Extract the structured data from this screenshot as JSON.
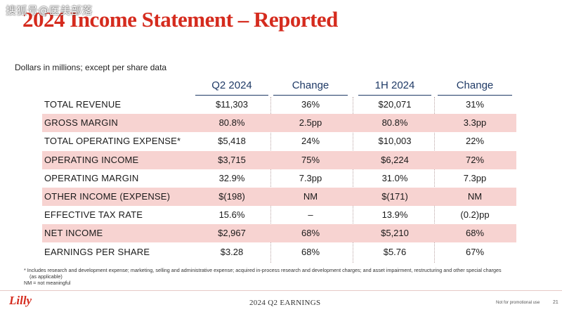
{
  "watermark": "搜狐号@医美部落",
  "title": "2024 Income Statement – Reported",
  "subtitle": "Dollars in millions; except per share data",
  "columns": [
    "Q2 2024",
    "Change",
    "1H 2024",
    "Change"
  ],
  "rows": [
    {
      "label": "TOTAL REVENUE",
      "q2": "$11,303",
      "q2_change": "36%",
      "h1": "$20,071",
      "h1_change": "31%"
    },
    {
      "label": "GROSS MARGIN",
      "q2": "80.8%",
      "q2_change": "2.5pp",
      "h1": "80.8%",
      "h1_change": "3.3pp"
    },
    {
      "label": "TOTAL OPERATING EXPENSE*",
      "q2": "$5,418",
      "q2_change": "24%",
      "h1": "$10,003",
      "h1_change": "22%"
    },
    {
      "label": "OPERATING INCOME",
      "q2": "$3,715",
      "q2_change": "75%",
      "h1": "$6,224",
      "h1_change": "72%"
    },
    {
      "label": "OPERATING MARGIN",
      "q2": "32.9%",
      "q2_change": "7.3pp",
      "h1": "31.0%",
      "h1_change": "7.3pp"
    },
    {
      "label": "OTHER INCOME (EXPENSE)",
      "q2": "$(198)",
      "q2_change": "NM",
      "h1": "$(171)",
      "h1_change": "NM"
    },
    {
      "label": "EFFECTIVE TAX RATE",
      "q2": "15.6%",
      "q2_change": "–",
      "h1": "13.9%",
      "h1_change": "(0.2)pp"
    },
    {
      "label": "NET INCOME",
      "q2": "$2,967",
      "q2_change": "68%",
      "h1": "$5,210",
      "h1_change": "68%"
    },
    {
      "label": "EARNINGS PER SHARE",
      "q2": "$3.28",
      "q2_change": "68%",
      "h1": "$5.76",
      "h1_change": "67%"
    }
  ],
  "footnote": {
    "line1": "* Includes research and development expense; marketing, selling and administrative expense; acquired in-process research and development charges; and asset impairment, restructuring and other special charges",
    "line2": "(as applicable)",
    "line3": "NM = not meaningful"
  },
  "footer": {
    "logo": "Lilly",
    "title": "2024 Q2 EARNINGS",
    "note": "Not for promotional use",
    "page": "21"
  }
}
